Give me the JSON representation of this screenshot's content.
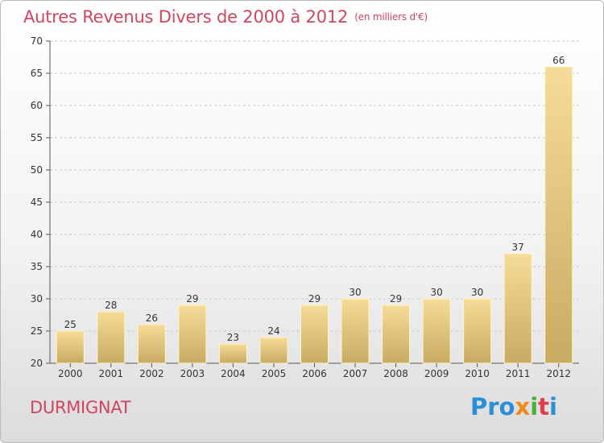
{
  "chart_data": {
    "type": "bar",
    "title": "Autres Revenus Divers de 2000 à 2012",
    "subtitle": "(en milliers d'€)",
    "categories": [
      "2000",
      "2001",
      "2002",
      "2003",
      "2004",
      "2005",
      "2006",
      "2007",
      "2008",
      "2009",
      "2010",
      "2011",
      "2012"
    ],
    "values": [
      25,
      28,
      26,
      29,
      23,
      24,
      29,
      30,
      29,
      30,
      30,
      37,
      66
    ],
    "ylim": [
      20,
      70
    ],
    "yticks": [
      20,
      25,
      30,
      35,
      40,
      45,
      50,
      55,
      60,
      65,
      70
    ],
    "grid": "horizontal dashed",
    "bar_color_top": "#f5dc98",
    "bar_color_bottom": "#c8ab62"
  },
  "footer": {
    "city": "DURMIGNAT",
    "logo_parts": [
      "Pro",
      "x",
      "i",
      "t",
      "i"
    ]
  }
}
